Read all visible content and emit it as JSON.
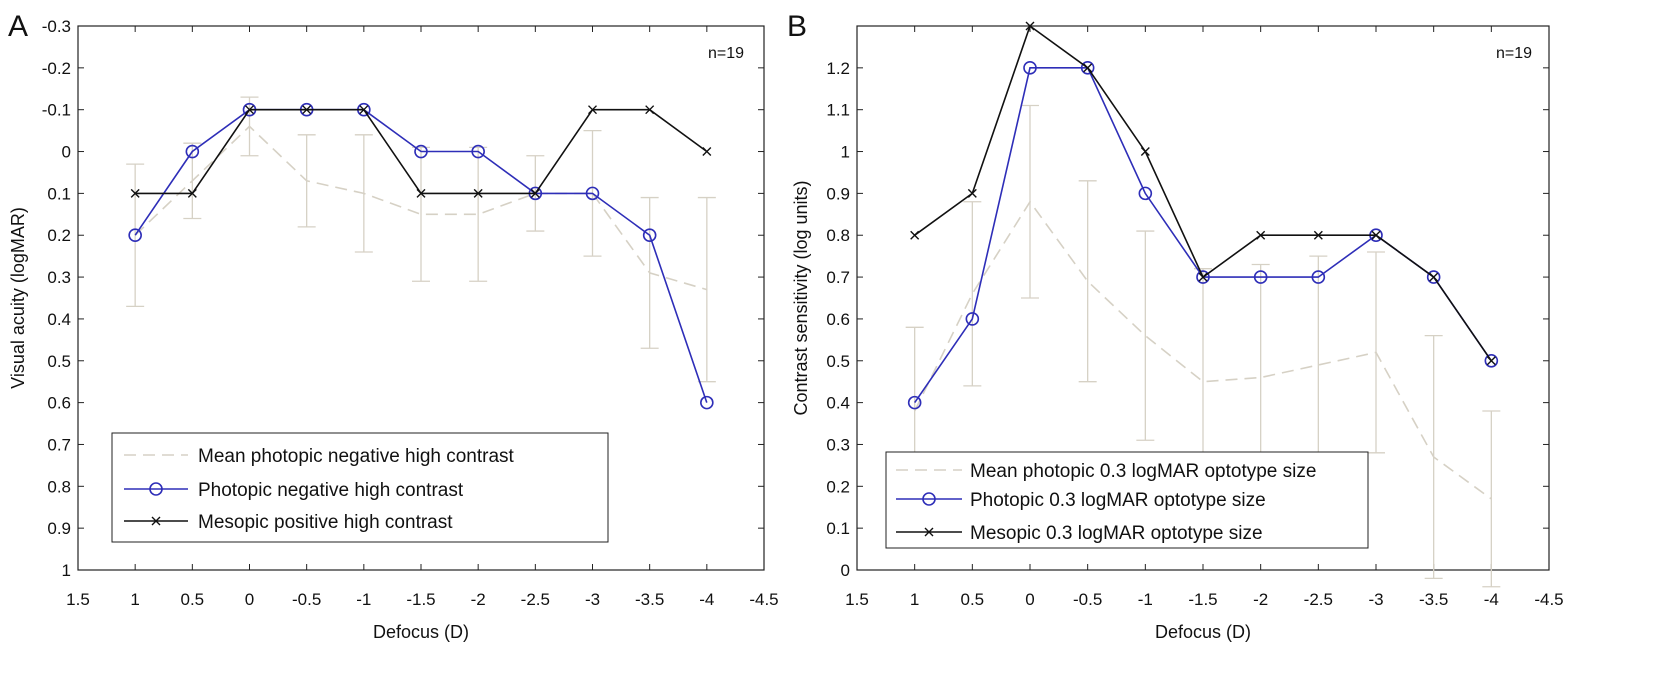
{
  "chart_data": [
    {
      "type": "line",
      "panel_label": "A",
      "annotation": "n=19",
      "xlabel": "Defocus (D)",
      "ylabel": "Visual acuity (logMAR)",
      "xlim": [
        1.5,
        -4.5
      ],
      "ylim": [
        -0.3,
        1
      ],
      "y_inverted": true,
      "x_ticks": [
        "1.5",
        "1",
        "0.5",
        "0",
        "-0.5",
        "-1",
        "-1.5",
        "-2",
        "-2.5",
        "-3",
        "-3.5",
        "-4",
        "-4.5"
      ],
      "x_tick_values": [
        1.5,
        1,
        0.5,
        0,
        -0.5,
        -1,
        -1.5,
        -2,
        -2.5,
        -3,
        -3.5,
        -4,
        -4.5
      ],
      "y_ticks": [
        "-0.3",
        "-0.2",
        "-0.1",
        "0",
        "0.1",
        "0.2",
        "0.3",
        "0.4",
        "0.5",
        "0.6",
        "0.7",
        "0.8",
        "0.9",
        "1"
      ],
      "y_tick_values": [
        -0.3,
        -0.2,
        -0.1,
        0,
        0.1,
        0.2,
        0.3,
        0.4,
        0.5,
        0.6,
        0.7,
        0.8,
        0.9,
        1
      ],
      "x": [
        1,
        0.5,
        0,
        -0.5,
        -1,
        -1.5,
        -2,
        -2.5,
        -3,
        -3.5,
        -4
      ],
      "legend_position": "bottom-left",
      "series": [
        {
          "name": "Mean photopic negative high contrast",
          "style": "dashed",
          "color": "#d9d4c9",
          "values": [
            0.2,
            0.07,
            -0.06,
            0.07,
            0.1,
            0.15,
            0.15,
            0.1,
            0.1,
            0.29,
            0.33
          ],
          "error": [
            0.17,
            0.09,
            0.07,
            0.11,
            0.14,
            0.16,
            0.16,
            0.09,
            0.15,
            0.18,
            0.22
          ]
        },
        {
          "name": "Photopic negative high contrast",
          "style": "solid",
          "marker": "circle",
          "color": "#2e2eb8",
          "values": [
            0.2,
            0,
            -0.1,
            -0.1,
            -0.1,
            0,
            0,
            0.1,
            0.1,
            0.2,
            0.6
          ]
        },
        {
          "name": "Mesopic positive high contrast",
          "style": "solid",
          "marker": "x",
          "color": "#111111",
          "values": [
            0.1,
            0.1,
            -0.1,
            -0.1,
            -0.1,
            0.1,
            0.1,
            0.1,
            -0.1,
            -0.1,
            0
          ]
        }
      ]
    },
    {
      "type": "line",
      "panel_label": "B",
      "annotation": "n=19",
      "xlabel": "Defocus (D)",
      "ylabel": "Contrast sensitivity (log units)",
      "xlim": [
        1.5,
        -4.5
      ],
      "ylim": [
        0,
        1.3
      ],
      "y_inverted": false,
      "x_ticks": [
        "1.5",
        "1",
        "0.5",
        "0",
        "-0.5",
        "-1",
        "-1.5",
        "-2",
        "-2.5",
        "-3",
        "-3.5",
        "-4",
        "-4.5"
      ],
      "x_tick_values": [
        1.5,
        1,
        0.5,
        0,
        -0.5,
        -1,
        -1.5,
        -2,
        -2.5,
        -3,
        -3.5,
        -4,
        -4.5
      ],
      "y_ticks": [
        "0",
        "0.1",
        "0.2",
        "0.3",
        "0.4",
        "0.5",
        "0.6",
        "0.7",
        "0.8",
        "0.9",
        "1",
        "1.1",
        "1.2"
      ],
      "y_tick_values": [
        0,
        0.1,
        0.2,
        0.3,
        0.4,
        0.5,
        0.6,
        0.7,
        0.8,
        0.9,
        1,
        1.1,
        1.2
      ],
      "x": [
        1,
        0.5,
        0,
        -0.5,
        -1,
        -1.5,
        -2,
        -2.5,
        -3,
        -3.5,
        -4
      ],
      "legend_position": "bottom-left",
      "series": [
        {
          "name": "Mean photopic 0.3 logMAR optotype size",
          "style": "dashed",
          "color": "#d9d4c9",
          "values": [
            0.38,
            0.66,
            0.88,
            0.69,
            0.56,
            0.45,
            0.46,
            0.49,
            0.52,
            0.27,
            0.17
          ],
          "error": [
            0.2,
            0.22,
            0.23,
            0.24,
            0.25,
            0.27,
            0.27,
            0.26,
            0.24,
            0.29,
            0.21
          ]
        },
        {
          "name": "Photopic 0.3 logMAR optotype size",
          "style": "solid",
          "marker": "circle",
          "color": "#2e2eb8",
          "values": [
            0.4,
            0.6,
            1.2,
            1.2,
            0.9,
            0.7,
            0.7,
            0.7,
            0.8,
            0.7,
            0.5
          ]
        },
        {
          "name": "Mesopic 0.3 logMAR optotype size",
          "style": "solid",
          "marker": "x",
          "color": "#111111",
          "values": [
            0.8,
            0.9,
            1.3,
            1.2,
            1.0,
            0.7,
            0.8,
            0.8,
            0.8,
            0.7,
            0.5
          ]
        }
      ]
    }
  ]
}
